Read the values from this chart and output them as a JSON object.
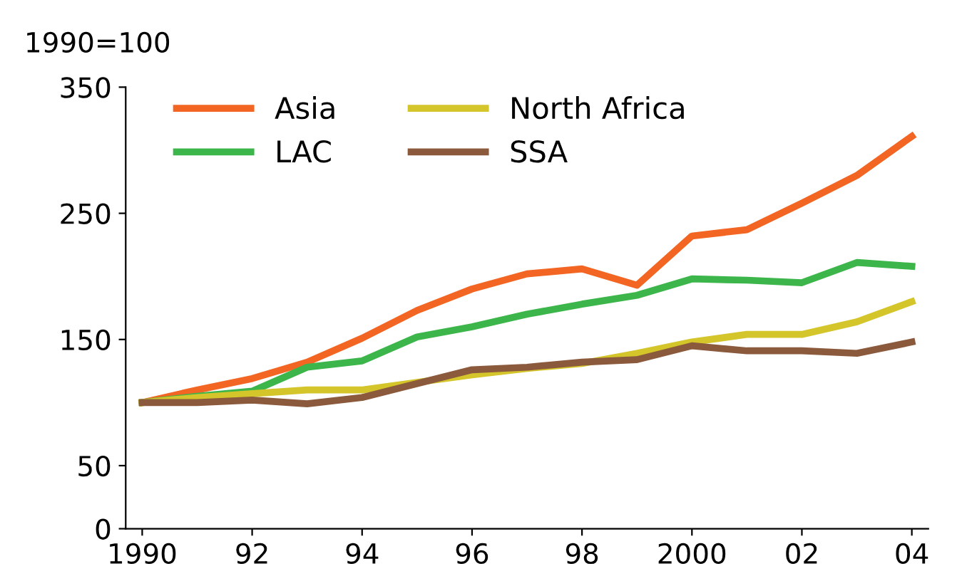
{
  "chart_data": {
    "type": "line",
    "ylabel": "1990=100",
    "x": [
      1990,
      1991,
      1992,
      1993,
      1994,
      1995,
      1996,
      1997,
      1998,
      1999,
      2000,
      2001,
      2002,
      2003,
      2004
    ],
    "series": [
      {
        "name": "Asia",
        "color": "#f26522",
        "values": [
          100,
          110,
          119,
          132,
          151,
          173,
          190,
          202,
          206,
          193,
          232,
          237,
          258,
          280,
          311
        ]
      },
      {
        "name": "LAC",
        "color": "#3cb54a",
        "values": [
          100,
          105,
          109,
          128,
          133,
          152,
          160,
          170,
          178,
          185,
          198,
          197,
          195,
          211,
          208
        ]
      },
      {
        "name": "North Africa",
        "color": "#d4c52a",
        "values": [
          100,
          104,
          107,
          110,
          110,
          116,
          122,
          127,
          131,
          139,
          148,
          154,
          154,
          164,
          180
        ]
      },
      {
        "name": "SSA",
        "color": "#8b5a3c",
        "values": [
          100,
          100,
          102,
          99,
          104,
          115,
          126,
          128,
          132,
          134,
          145,
          141,
          141,
          139,
          148
        ]
      }
    ],
    "xlim": [
      1989.7,
      2004.3
    ],
    "xticks": [
      {
        "value": 1990,
        "label": "1990"
      },
      {
        "value": 1992,
        "label": "92"
      },
      {
        "value": 1994,
        "label": "94"
      },
      {
        "value": 1996,
        "label": "96"
      },
      {
        "value": 1998,
        "label": "98"
      },
      {
        "value": 2000,
        "label": "2000"
      },
      {
        "value": 2002,
        "label": "02"
      },
      {
        "value": 2004,
        "label": "04"
      }
    ],
    "ylim": [
      0,
      350
    ],
    "yticks": [
      0,
      50,
      150,
      250,
      350
    ],
    "grid": false,
    "legend": "top left",
    "marker": "none",
    "line_style": "solid"
  }
}
